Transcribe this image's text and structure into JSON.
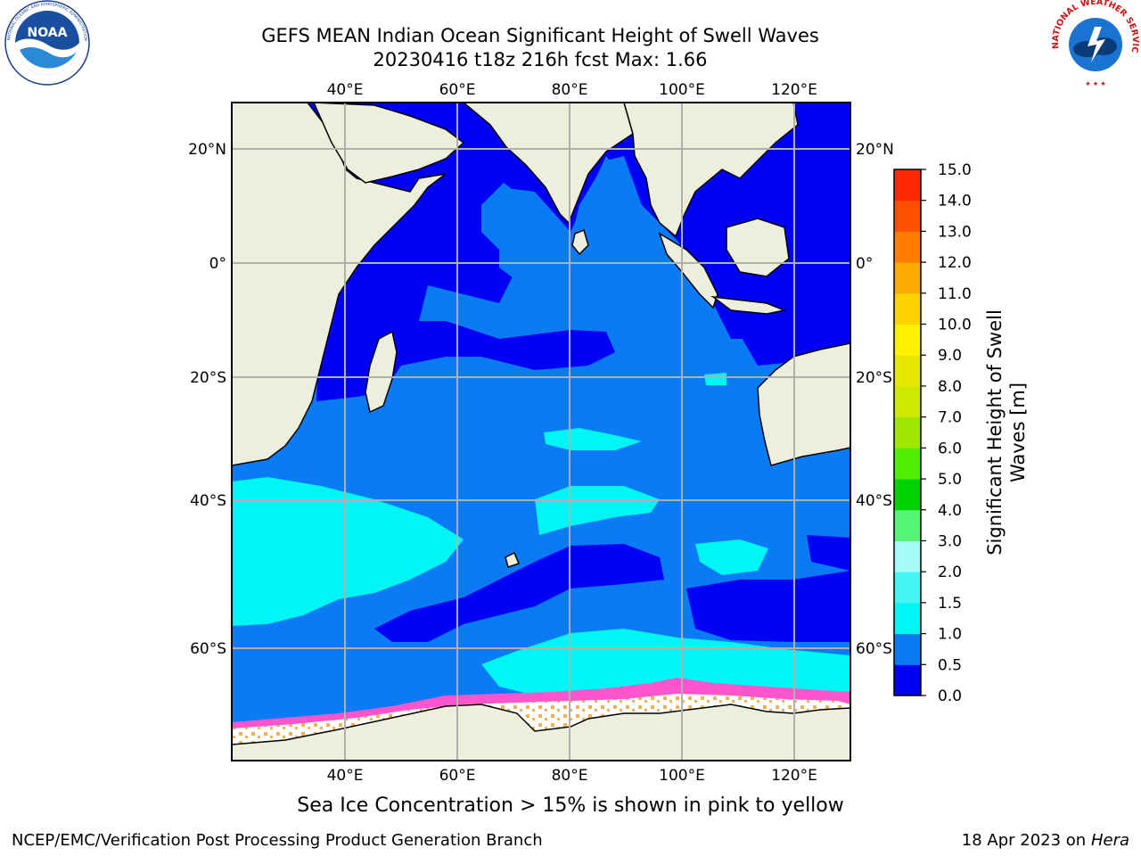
{
  "header": {
    "title_line1": "GEFS MEAN Indian Ocean Significant Height of Swell Waves",
    "title_line2": "20230416 t18z 216h fcst   Max: 1.66"
  },
  "logos": {
    "left": {
      "name": "noaa-logo",
      "text": "NOAA",
      "ring_text": "NATIONAL OCEANIC AND ATMOSPHERIC ADMINISTRATION · U.S. DEPARTMENT OF COMMERCE"
    },
    "right": {
      "name": "nws-logo",
      "ring_text": "NATIONAL WEATHER SERVICE"
    }
  },
  "map": {
    "lon_labels": [
      "40°E",
      "60°E",
      "80°E",
      "100°E",
      "120°E"
    ],
    "lat_labels_left": [
      "20°N",
      "0°",
      "20°S",
      "40°S",
      "60°S"
    ],
    "lat_labels_right": [
      "20°N",
      "0°",
      "20°S",
      "40°S",
      "60°S"
    ],
    "gridlines": true,
    "colors": {
      "land": "#eeeedd",
      "sea_0_0_5": "#0000f5",
      "sea_0_5_1_0": "#0a7af5",
      "sea_1_0_1_5": "#00f5f5",
      "sea_1_5_2_0": "#45f5f5",
      "ice_pink": "#ff55cc",
      "ice_orange": "#f5b050",
      "ice_white": "#ffffff"
    }
  },
  "colorbar": {
    "label_line1": "Significant Height of Swell",
    "label_line2": "Waves [m]",
    "ticks": [
      "0.0",
      "0.5",
      "1.0",
      "1.5",
      "2.0",
      "3.0",
      "4.0",
      "5.0",
      "6.0",
      "7.0",
      "8.0",
      "9.0",
      "10.0",
      "11.0",
      "12.0",
      "13.0",
      "14.0",
      "15.0"
    ],
    "colors": [
      "#0000f5",
      "#0a7af5",
      "#00f5f5",
      "#45f5f5",
      "#a5fafa",
      "#55f575",
      "#00d200",
      "#50ef00",
      "#a0e600",
      "#cfe800",
      "#e6e600",
      "#fff000",
      "#ffd200",
      "#ffaa00",
      "#ff7d00",
      "#ff5000",
      "#ff2800",
      "#ff0000"
    ]
  },
  "caption": "Sea Ice Concentration > 15% is shown in pink to yellow",
  "footer": {
    "left": "NCEP/EMC/Verification Post Processing Product Generation Branch",
    "right_prefix": "18 Apr 2023 on ",
    "right_host": "Hera"
  }
}
